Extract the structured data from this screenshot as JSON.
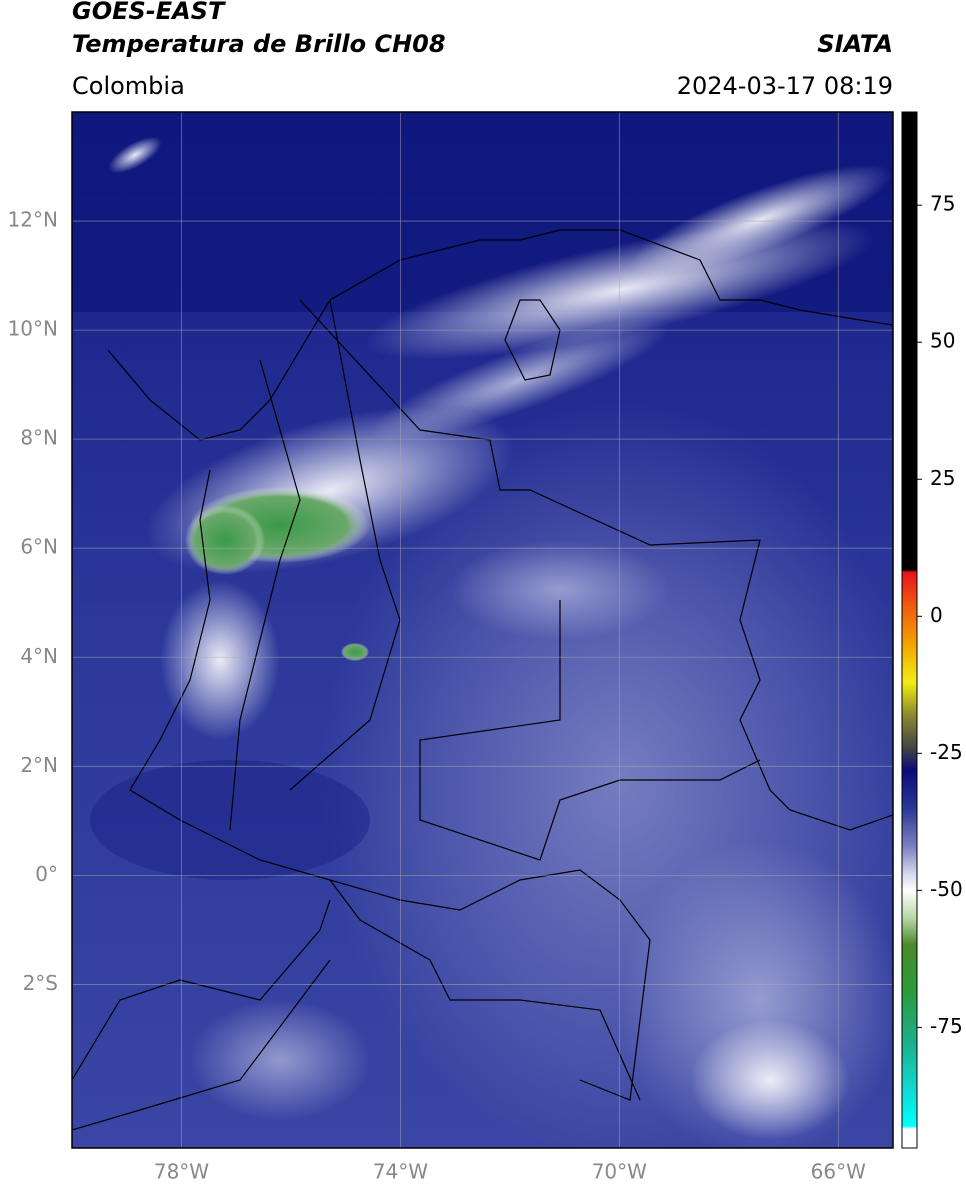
{
  "header": {
    "title": "GOES-EAST",
    "subtitle": "Temperatura de Brillo CH08",
    "region": "Colombia",
    "source": "SIATA",
    "datetime": "2024-03-17 08:19"
  },
  "map": {
    "xlim": [
      -80,
      -65
    ],
    "ylim": [
      -5,
      14
    ],
    "xticks": [
      {
        "value": -78,
        "label": "78°W"
      },
      {
        "value": -74,
        "label": "74°W"
      },
      {
        "value": -70,
        "label": "70°W"
      },
      {
        "value": -66,
        "label": "66°W"
      }
    ],
    "yticks": [
      {
        "value": 12,
        "label": "12°N"
      },
      {
        "value": 10,
        "label": "10°N"
      },
      {
        "value": 8,
        "label": "8°N"
      },
      {
        "value": 6,
        "label": "6°N"
      },
      {
        "value": 4,
        "label": "4°N"
      },
      {
        "value": 2,
        "label": "2°N"
      },
      {
        "value": 0,
        "label": "0°"
      },
      {
        "value": -2,
        "label": "2°S"
      }
    ],
    "grid": true
  },
  "colorbar": {
    "lim": [
      -97,
      92
    ],
    "ticks": [
      75,
      50,
      25,
      0,
      -25,
      -50,
      -75
    ],
    "colors": [
      [
        92,
        "#000000"
      ],
      [
        8.5,
        "#000000"
      ],
      [
        8,
        "#e8121b"
      ],
      [
        2,
        "#f05a0f"
      ],
      [
        -5,
        "#f2a300"
      ],
      [
        -12,
        "#f2ee12"
      ],
      [
        -18,
        "#8a8a30"
      ],
      [
        -24,
        "#444444"
      ],
      [
        -28,
        "#0a0a7a"
      ],
      [
        -35,
        "#2b3796"
      ],
      [
        -42,
        "#7c80c0"
      ],
      [
        -47,
        "#d6d8ee"
      ],
      [
        -50,
        "#ffffff"
      ],
      [
        -55,
        "#b8d8a8"
      ],
      [
        -60,
        "#4a8a2a"
      ],
      [
        -68,
        "#2c9a3a"
      ],
      [
        -78,
        "#1cb08c"
      ],
      [
        -86,
        "#12d8d0"
      ],
      [
        -93,
        "#00ffff"
      ],
      [
        -93.5,
        "#ffffff"
      ],
      [
        -97,
        "#ffffff"
      ]
    ]
  }
}
